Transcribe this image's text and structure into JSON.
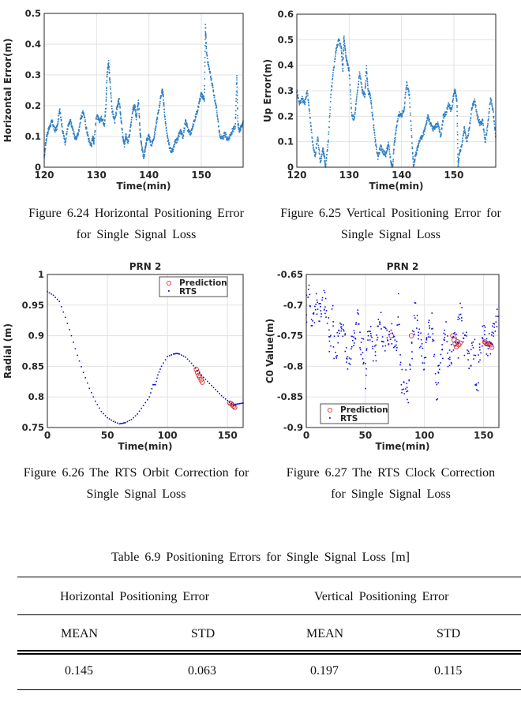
{
  "figures": [
    {
      "caption_line1": "Figure 6.24 Horizontal Positioning Error",
      "caption_line2": "for Single Signal Loss"
    },
    {
      "caption_line1": "Figure 6.25 Vertical Positioning Error for",
      "caption_line2": "Single Signal Loss"
    },
    {
      "caption_line1": "Figure 6.26 The RTS Orbit Correction for",
      "caption_line2": "Single Signal Loss"
    },
    {
      "caption_line1": "Figure 6.27 The RTS Clock Correction",
      "caption_line2": "for Single Signal Loss"
    }
  ],
  "chart_data": [
    {
      "type": "scatter",
      "title": "",
      "xlabel": "Time(min)",
      "ylabel": "Horizontal Error(m)",
      "xlim": [
        120,
        158
      ],
      "ylim": [
        0,
        0.5
      ],
      "xticks": [
        120,
        130,
        140,
        150
      ],
      "yticks": [
        0,
        0.1,
        0.2,
        0.3,
        0.4,
        0.5
      ],
      "ytick_labels": [
        "0",
        "0.1",
        "0.2",
        "0.3",
        "0.4",
        "0.5"
      ],
      "grid": true,
      "color": "#2f7fc1",
      "series": [
        {
          "name": "Horizontal Error",
          "x": [
            120,
            120.3,
            120.6,
            121,
            121.5,
            122,
            122.5,
            123,
            123.5,
            124,
            124.5,
            125,
            125.5,
            126,
            126.5,
            127,
            127.5,
            128,
            128.5,
            129,
            129.3,
            129.5,
            130,
            130.5,
            131,
            131.5,
            131.8,
            132,
            132.3,
            132.6,
            133,
            133.5,
            134,
            134.3,
            134.6,
            135,
            135.3,
            135.6,
            136,
            136.5,
            137,
            137.3,
            137.6,
            138,
            138.3,
            138.6,
            139,
            139.3,
            139.6,
            140,
            140.5,
            141,
            141.5,
            142,
            142.5,
            142.7,
            143,
            143.5,
            144,
            144.5,
            145,
            145.5,
            146,
            146.5,
            147,
            147.5,
            148,
            148.5,
            149,
            149.5,
            150,
            150.3,
            150.6,
            150.8,
            151,
            151.5,
            152,
            152.5,
            153,
            153.5,
            154,
            154.5,
            155,
            155.5,
            156,
            156.5,
            156.8,
            157,
            157.3,
            157.6,
            158
          ],
          "y": [
            0.03,
            0.08,
            0.11,
            0.13,
            0.15,
            0.12,
            0.13,
            0.19,
            0.12,
            0.08,
            0.13,
            0.15,
            0.12,
            0.09,
            0.11,
            0.16,
            0.18,
            0.13,
            0.09,
            0.07,
            0.1,
            0.08,
            0.17,
            0.15,
            0.16,
            0.14,
            0.2,
            0.3,
            0.34,
            0.27,
            0.18,
            0.15,
            0.2,
            0.22,
            0.17,
            0.1,
            0.07,
            0.11,
            0.08,
            0.13,
            0.19,
            0.2,
            0.16,
            0.22,
            0.12,
            0.07,
            0.03,
            0.06,
            0.09,
            0.1,
            0.07,
            0.1,
            0.15,
            0.2,
            0.25,
            0.24,
            0.17,
            0.1,
            0.06,
            0.05,
            0.08,
            0.09,
            0.12,
            0.1,
            0.15,
            0.12,
            0.11,
            0.14,
            0.17,
            0.2,
            0.24,
            0.23,
            0.22,
            0.46,
            0.37,
            0.32,
            0.28,
            0.23,
            0.18,
            0.11,
            0.09,
            0.11,
            0.09,
            0.1,
            0.12,
            0.13,
            0.3,
            0.14,
            0.12,
            0.13,
            0.15
          ]
        }
      ]
    },
    {
      "type": "scatter",
      "title": "",
      "xlabel": "Time(min)",
      "ylabel": "Up Error(m)",
      "xlim": [
        120,
        158
      ],
      "ylim": [
        0,
        0.6
      ],
      "xticks": [
        120,
        130,
        140,
        150
      ],
      "yticks": [
        0,
        0.1,
        0.2,
        0.3,
        0.4,
        0.5,
        0.6
      ],
      "ytick_labels": [
        "0",
        "0.1",
        "0.2",
        "0.3",
        "0.4",
        "0.5",
        "0.6"
      ],
      "grid": true,
      "color": "#2f7fc1",
      "series": [
        {
          "name": "Up Error",
          "x": [
            120,
            120.5,
            121,
            121.5,
            122,
            122.5,
            123,
            123.5,
            124,
            124.5,
            125,
            125.2,
            125.5,
            126,
            126.5,
            127,
            127.5,
            128,
            128.5,
            128.8,
            129,
            129.3,
            129.6,
            130,
            130.5,
            131,
            131.5,
            132,
            132.5,
            133,
            133.3,
            133.6,
            134,
            134.5,
            135,
            135.5,
            136,
            136.5,
            137,
            137.5,
            138,
            138.3,
            138.6,
            139,
            139.5,
            140,
            140.5,
            141,
            141.5,
            142,
            142.3,
            142.6,
            143,
            143.5,
            144,
            144.5,
            145,
            145.5,
            146,
            146.5,
            147,
            147.5,
            148,
            148.5,
            149,
            149.5,
            150,
            150.3,
            150.6,
            150.8,
            151,
            151.5,
            152,
            152.5,
            153,
            153.5,
            154,
            154.5,
            155,
            155.5,
            156,
            156.5,
            157,
            157.5,
            158
          ],
          "y": [
            0.3,
            0.25,
            0.27,
            0.25,
            0.3,
            0.2,
            0.1,
            0.04,
            0.12,
            0.02,
            0.07,
            0.05,
            0,
            0.1,
            0.28,
            0.38,
            0.46,
            0.5,
            0.47,
            0.38,
            0.51,
            0.45,
            0.41,
            0.38,
            0.2,
            0.19,
            0.28,
            0.37,
            0.3,
            0.28,
            0.39,
            0.3,
            0.28,
            0.2,
            0.1,
            0.04,
            0.08,
            0.06,
            0.05,
            0.09,
            0.02,
            0,
            0.09,
            0.15,
            0.21,
            0.2,
            0.23,
            0.33,
            0.28,
            0.1,
            0,
            0.04,
            0.07,
            0.11,
            0.12,
            0.15,
            0.2,
            0.17,
            0.15,
            0.16,
            0.17,
            0.12,
            0.2,
            0.21,
            0.25,
            0.22,
            0.29,
            0.3,
            0.25,
            0,
            0.05,
            0.08,
            0.15,
            0.1,
            0.16,
            0.24,
            0.26,
            0.2,
            0.17,
            0.18,
            0.1,
            0.17,
            0.27,
            0.22,
            0.12
          ]
        }
      ]
    },
    {
      "type": "scatter",
      "title": "PRN 2",
      "xlabel": "Time(min)",
      "ylabel": "Radial (m)",
      "xlim": [
        0,
        163
      ],
      "ylim": [
        0.75,
        1
      ],
      "xticks": [
        0,
        50,
        100,
        150
      ],
      "yticks": [
        0.75,
        0.8,
        0.85,
        0.9,
        0.95,
        1
      ],
      "ytick_labels": [
        "0.75",
        "0.8",
        "0.85",
        "0.9",
        "0.95",
        "1"
      ],
      "grid": true,
      "legend": {
        "position": "top-right",
        "entries": [
          "Prediction",
          "RTS"
        ]
      },
      "series": [
        {
          "name": "Prediction",
          "marker": "circle",
          "color": "#e03030",
          "x": [
            124,
            125,
            126,
            127,
            128,
            129,
            152,
            153,
            154,
            155,
            156
          ],
          "y": [
            0.845,
            0.84,
            0.835,
            0.832,
            0.828,
            0.824,
            0.79,
            0.789,
            0.787,
            0.785,
            0.783
          ]
        },
        {
          "name": "RTS",
          "marker": "dot",
          "color": "#1010e0",
          "x": [
            0,
            5,
            10,
            15,
            20,
            25,
            30,
            35,
            40,
            45,
            50,
            55,
            60,
            63,
            65,
            70,
            75,
            80,
            85,
            88,
            90,
            92,
            95,
            100,
            105,
            108,
            110,
            115,
            120,
            125,
            130,
            135,
            140,
            145,
            150,
            155,
            157,
            160,
            163
          ],
          "y": [
            0.972,
            0.966,
            0.956,
            0.93,
            0.9,
            0.868,
            0.84,
            0.814,
            0.793,
            0.776,
            0.766,
            0.76,
            0.756,
            0.757,
            0.758,
            0.763,
            0.772,
            0.786,
            0.8,
            0.82,
            0.82,
            0.836,
            0.85,
            0.866,
            0.87,
            0.871,
            0.87,
            0.865,
            0.855,
            0.843,
            0.832,
            0.822,
            0.812,
            0.802,
            0.794,
            0.786,
            0.788,
            0.789,
            0.79
          ]
        }
      ]
    },
    {
      "type": "scatter",
      "title": "PRN 2",
      "xlabel": "Time(min)",
      "ylabel": "C0 Value(m)",
      "xlim": [
        0,
        163
      ],
      "ylim": [
        -0.9,
        -0.65
      ],
      "xticks": [
        0,
        50,
        100,
        150
      ],
      "yticks": [
        -0.9,
        -0.85,
        -0.8,
        -0.75,
        -0.7,
        -0.65
      ],
      "ytick_labels": [
        "-0.9",
        "-0.85",
        "-0.8",
        "-0.75",
        "-0.7",
        "-0.65"
      ],
      "grid": true,
      "legend": {
        "position": "bottom-left",
        "entries": [
          "Prediction",
          "RTS"
        ]
      },
      "series": [
        {
          "name": "Prediction",
          "marker": "circle",
          "color": "#e03030",
          "x": [
            72,
            89,
            124,
            125,
            126,
            127,
            128,
            129,
            130,
            151,
            152,
            153,
            154,
            155,
            156,
            157
          ],
          "y": [
            -0.75,
            -0.75,
            -0.75,
            -0.757,
            -0.763,
            -0.768,
            -0.76,
            -0.765,
            -0.762,
            -0.76,
            -0.762,
            -0.763,
            -0.764,
            -0.763,
            -0.765,
            -0.769
          ]
        },
        {
          "name": "RTS",
          "marker": "dot",
          "color": "#1010e0",
          "x": [
            0,
            2,
            4,
            6,
            8,
            10,
            12,
            14,
            16,
            18,
            20,
            22,
            24,
            26,
            28,
            30,
            32,
            34,
            36,
            38,
            40,
            42,
            44,
            46,
            48,
            50,
            52,
            54,
            56,
            58,
            60,
            62,
            64,
            66,
            68,
            70,
            72,
            74,
            76,
            78,
            80,
            82,
            84,
            86,
            88,
            90,
            92,
            94,
            96,
            98,
            100,
            102,
            104,
            106,
            108,
            110,
            112,
            114,
            116,
            118,
            120,
            122,
            124,
            126,
            128,
            130,
            132,
            134,
            136,
            138,
            140,
            142,
            144,
            146,
            148,
            150,
            152,
            154,
            156,
            158,
            160,
            162
          ],
          "y": [
            -0.72,
            -0.67,
            -0.71,
            -0.73,
            -0.68,
            -0.7,
            -0.72,
            -0.68,
            -0.7,
            -0.72,
            -0.78,
            -0.7,
            -0.79,
            -0.76,
            -0.73,
            -0.74,
            -0.75,
            -0.77,
            -0.8,
            -0.76,
            -0.77,
            -0.74,
            -0.72,
            -0.78,
            -0.76,
            -0.82,
            -0.76,
            -0.75,
            -0.77,
            -0.79,
            -0.76,
            -0.72,
            -0.74,
            -0.76,
            -0.75,
            -0.77,
            -0.74,
            -0.76,
            -0.79,
            -0.7,
            -0.81,
            -0.84,
            -0.82,
            -0.86,
            -0.79,
            -0.77,
            -0.7,
            -0.74,
            -0.76,
            -0.78,
            -0.8,
            -0.74,
            -0.74,
            -0.73,
            -0.75,
            -0.85,
            -0.81,
            -0.78,
            -0.76,
            -0.73,
            -0.78,
            -0.8,
            -0.75,
            -0.76,
            -0.77,
            -0.7,
            -0.73,
            -0.77,
            -0.76,
            -0.8,
            -0.78,
            -0.77,
            -0.84,
            -0.79,
            -0.77,
            -0.74,
            -0.76,
            -0.77,
            -0.76,
            -0.74,
            -0.73,
            -0.72
          ]
        }
      ]
    }
  ],
  "table": {
    "title": "Table 6.9 Positioning Errors for Single Signal Loss [m]",
    "group_headers": [
      "Horizontal Positioning Error",
      "Vertical Positioning Error"
    ],
    "sub_headers": [
      "MEAN",
      "STD",
      "MEAN",
      "STD"
    ],
    "rows": [
      [
        "0.145",
        "0.063",
        "0.197",
        "0.115"
      ]
    ]
  }
}
